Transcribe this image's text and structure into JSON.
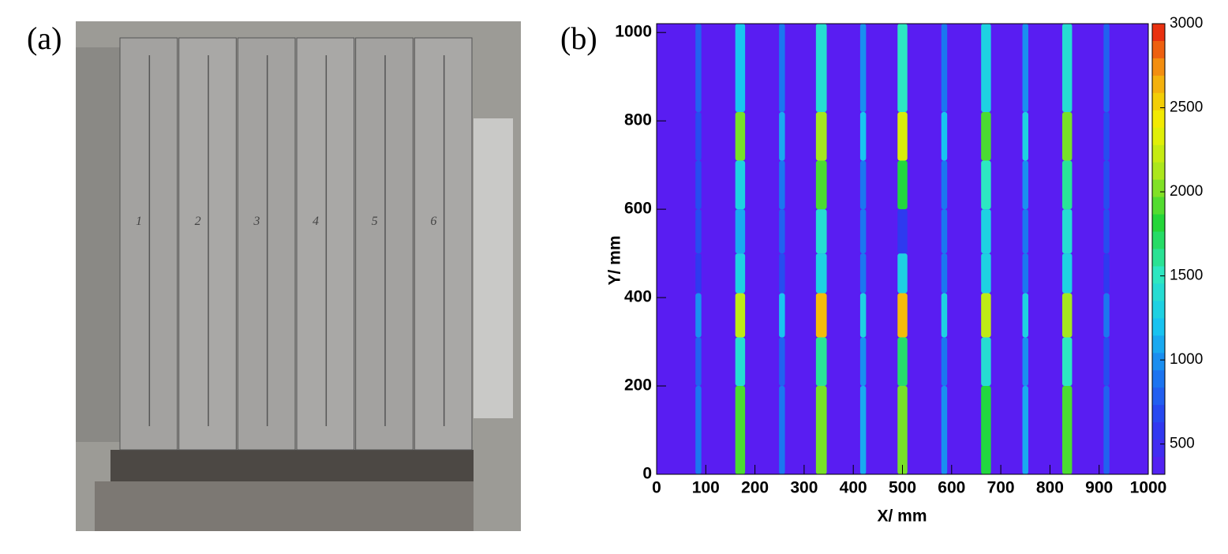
{
  "panel_a": {
    "label": "(a)",
    "photo": {
      "plate_labels": [
        "1",
        "2",
        "3",
        "4",
        "5",
        "6"
      ]
    }
  },
  "panel_b": {
    "label": "(b)"
  },
  "chart_data": {
    "type": "heatmap",
    "x_label": "X/ mm",
    "y_label": "Y/ mm",
    "xlim": [
      0,
      1000
    ],
    "xticks": [
      0,
      100,
      200,
      300,
      400,
      500,
      600,
      700,
      800,
      900,
      1000
    ],
    "ylim": [
      0,
      1020
    ],
    "yticks": [
      0,
      200,
      400,
      600,
      800,
      1000
    ],
    "zlim": [
      320,
      3000
    ],
    "zticks": [
      500,
      1000,
      1500,
      2000,
      2500,
      3000
    ],
    "colorscale": [
      "#5b1cf2",
      "#2b3cf0",
      "#1a7af0",
      "#18c8f0",
      "#2ee8c0",
      "#22d63a",
      "#a8e61e",
      "#f2f200",
      "#f5a010",
      "#e61a10"
    ],
    "background": 330,
    "ybins": [
      0,
      200,
      310,
      410,
      500,
      600,
      710,
      820,
      1020
    ],
    "strips": [
      {
        "x": 85,
        "width": 12,
        "values": [
          900,
          800,
          1000,
          600,
          700,
          700,
          700,
          800
        ]
      },
      {
        "x": 170,
        "width": 20,
        "values": [
          1900,
          1400,
          2200,
          1300,
          1100,
          1300,
          2000,
          1200
        ]
      },
      {
        "x": 255,
        "width": 12,
        "values": [
          900,
          800,
          1200,
          700,
          800,
          900,
          1100,
          900
        ]
      },
      {
        "x": 335,
        "width": 22,
        "values": [
          2000,
          1600,
          2600,
          1300,
          1400,
          1900,
          2100,
          1400
        ]
      },
      {
        "x": 420,
        "width": 12,
        "values": [
          1100,
          1000,
          1300,
          900,
          900,
          900,
          1200,
          1000
        ]
      },
      {
        "x": 500,
        "width": 20,
        "values": [
          2000,
          1700,
          2600,
          1300,
          600,
          1800,
          2300,
          1500
        ]
      },
      {
        "x": 585,
        "width": 12,
        "values": [
          1000,
          900,
          1300,
          900,
          900,
          900,
          1200,
          900
        ]
      },
      {
        "x": 670,
        "width": 20,
        "values": [
          1800,
          1400,
          2200,
          1300,
          1300,
          1500,
          1900,
          1300
        ]
      },
      {
        "x": 750,
        "width": 12,
        "values": [
          1100,
          1000,
          1300,
          900,
          900,
          1000,
          1300,
          1000
        ]
      },
      {
        "x": 835,
        "width": 20,
        "values": [
          1900,
          1500,
          2100,
          1300,
          1400,
          1600,
          2000,
          1400
        ]
      },
      {
        "x": 915,
        "width": 12,
        "values": [
          800,
          700,
          900,
          600,
          700,
          700,
          700,
          800
        ]
      }
    ]
  }
}
